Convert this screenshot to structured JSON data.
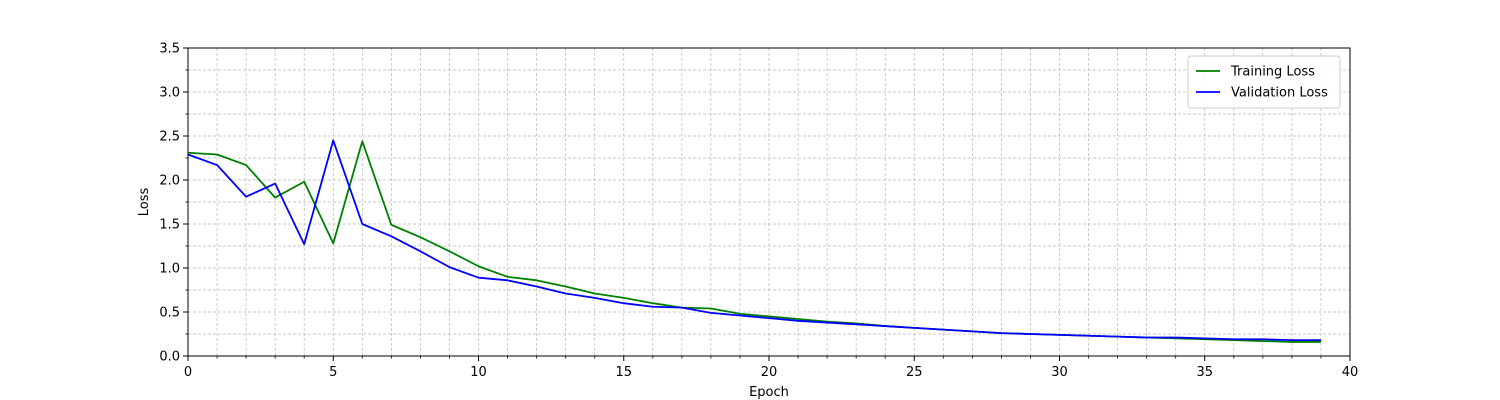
{
  "chart_data": {
    "type": "line",
    "title": "",
    "xlabel": "Epoch",
    "ylabel": "Loss",
    "xlim": [
      0,
      40
    ],
    "ylim": [
      0,
      3.5
    ],
    "x_ticks": [
      "0",
      "5",
      "10",
      "15",
      "20",
      "25",
      "30",
      "35",
      "40"
    ],
    "y_ticks": [
      "0.0",
      "0.5",
      "1.0",
      "1.5",
      "2.0",
      "2.5",
      "3.0",
      "3.5"
    ],
    "grid": true,
    "grid_style": "dashed, major and minor",
    "legend_position": "top-right",
    "x": [
      0,
      1,
      2,
      3,
      4,
      5,
      6,
      7,
      8,
      9,
      10,
      11,
      12,
      13,
      14,
      15,
      16,
      17,
      18,
      19,
      20,
      21,
      22,
      23,
      24,
      25,
      26,
      27,
      28,
      29,
      30,
      31,
      32,
      33,
      34,
      35,
      36,
      37,
      38,
      39
    ],
    "series": [
      {
        "name": "Training Loss",
        "color": "#008000",
        "values": [
          2.31,
          2.29,
          2.17,
          1.8,
          1.98,
          1.28,
          2.44,
          1.49,
          1.35,
          1.19,
          1.02,
          0.9,
          0.86,
          0.79,
          0.71,
          0.66,
          0.6,
          0.55,
          0.54,
          0.48,
          0.45,
          0.42,
          0.39,
          0.37,
          0.34,
          0.32,
          0.3,
          0.28,
          0.26,
          0.25,
          0.24,
          0.23,
          0.22,
          0.21,
          0.2,
          0.19,
          0.18,
          0.17,
          0.16,
          0.16
        ]
      },
      {
        "name": "Validation Loss",
        "color": "#0000ff",
        "values": [
          2.29,
          2.17,
          1.81,
          1.96,
          1.27,
          2.45,
          1.5,
          1.36,
          1.19,
          1.01,
          0.89,
          0.86,
          0.79,
          0.71,
          0.66,
          0.6,
          0.56,
          0.55,
          0.49,
          0.46,
          0.43,
          0.4,
          0.38,
          0.36,
          0.34,
          0.32,
          0.3,
          0.28,
          0.26,
          0.25,
          0.24,
          0.23,
          0.22,
          0.21,
          0.21,
          0.2,
          0.19,
          0.19,
          0.18,
          0.18
        ]
      }
    ]
  }
}
